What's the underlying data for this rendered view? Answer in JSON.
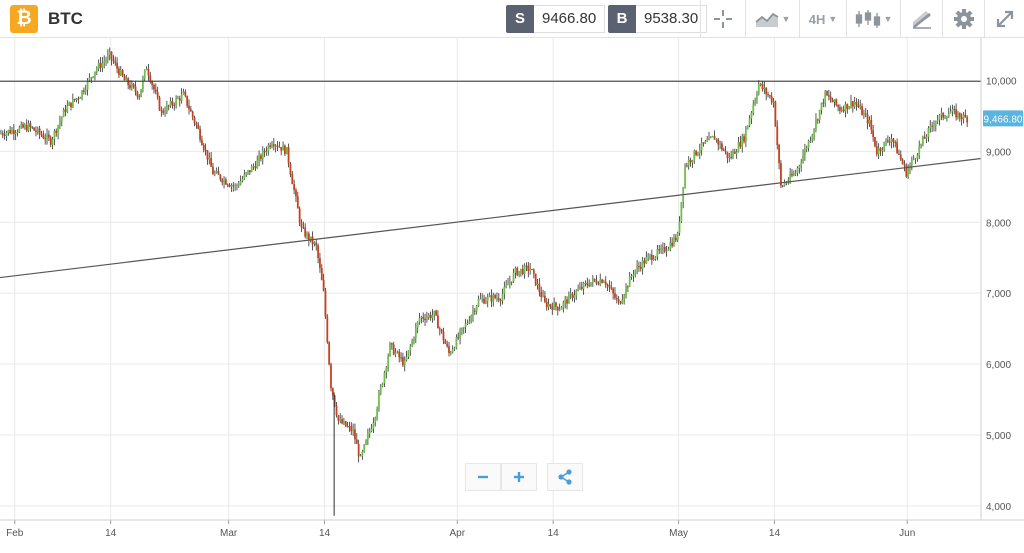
{
  "toolbar": {
    "symbol": "BTC",
    "logo_glyph": "₿",
    "sell": {
      "label": "S",
      "price": "9466.80"
    },
    "buy": {
      "label": "B",
      "price": "9538.30"
    },
    "timeframe": "4H",
    "icons": [
      "crosshair-icon",
      "chart-type-icon",
      "timeframe-dropdown",
      "candlestick-icon",
      "drawing-tools-icon",
      "settings-icon",
      "fullscreen-icon"
    ]
  },
  "zoom": {
    "icons": [
      "zoom-out-icon",
      "zoom-in-icon",
      "share-icon"
    ]
  },
  "colors": {
    "up": "#6fbf4a",
    "down": "#c9401c",
    "wick": "#2d2d2d",
    "grid": "#e9e9e9",
    "price_tag": "#5ab4e0",
    "logo": "#f7a823"
  },
  "chart_data": {
    "type": "candlestick",
    "symbol": "BTC",
    "timeframe": "4H",
    "y_ticks": [
      "10,000",
      "9,000",
      "8,000",
      "7,000",
      "6,000",
      "5,000",
      "4,000"
    ],
    "y_tick_values": [
      10000,
      9000,
      8000,
      7000,
      6000,
      5000,
      4000
    ],
    "ylim": [
      3800,
      10600
    ],
    "x_ticks": [
      "Feb",
      "14",
      "Mar",
      "14",
      "Apr",
      "14",
      "May",
      "14",
      "Jun"
    ],
    "x_tick_days": [
      0,
      13,
      29,
      42,
      60,
      73,
      90,
      103,
      121
    ],
    "xlim_days": [
      -2,
      131
    ],
    "last_price_label": "9,466.80",
    "last_price": 9466.8,
    "horizontal_line": {
      "price": 9990
    },
    "trend_line": {
      "from": {
        "day": -2,
        "price": 7220
      },
      "to": {
        "day": 131,
        "price": 8900
      }
    },
    "price_path": [
      [
        -2,
        9250
      ],
      [
        2,
        9350
      ],
      [
        5,
        9150
      ],
      [
        7,
        9600
      ],
      [
        9,
        9800
      ],
      [
        11,
        10150
      ],
      [
        13,
        10350
      ],
      [
        15,
        10000
      ],
      [
        17,
        9800
      ],
      [
        18,
        10200
      ],
      [
        20,
        9550
      ],
      [
        23,
        9800
      ],
      [
        25,
        9300
      ],
      [
        27,
        8700
      ],
      [
        30,
        8500
      ],
      [
        33,
        8850
      ],
      [
        35,
        9150
      ],
      [
        37,
        9000
      ],
      [
        39,
        7900
      ],
      [
        41,
        7650
      ],
      [
        42,
        7000
      ],
      [
        43,
        5700
      ],
      [
        44,
        5200
      ],
      [
        46,
        5050
      ],
      [
        47,
        4650
      ],
      [
        49,
        5300
      ],
      [
        51,
        6250
      ],
      [
        53,
        6000
      ],
      [
        55,
        6650
      ],
      [
        57,
        6700
      ],
      [
        59,
        6150
      ],
      [
        61,
        6500
      ],
      [
        63,
        6900
      ],
      [
        66,
        6950
      ],
      [
        68,
        7300
      ],
      [
        70,
        7350
      ],
      [
        72,
        6850
      ],
      [
        74,
        6800
      ],
      [
        76,
        7000
      ],
      [
        78,
        7150
      ],
      [
        80,
        7200
      ],
      [
        82,
        6850
      ],
      [
        84,
        7300
      ],
      [
        86,
        7500
      ],
      [
        88,
        7600
      ],
      [
        90,
        7800
      ],
      [
        91,
        8800
      ],
      [
        93,
        9050
      ],
      [
        95,
        9200
      ],
      [
        97,
        8900
      ],
      [
        99,
        9200
      ],
      [
        101,
        9950
      ],
      [
        103,
        9700
      ],
      [
        104,
        8500
      ],
      [
        106,
        8700
      ],
      [
        108,
        9200
      ],
      [
        110,
        9800
      ],
      [
        112,
        9600
      ],
      [
        114,
        9700
      ],
      [
        116,
        9400
      ],
      [
        117,
        9000
      ],
      [
        119,
        9200
      ],
      [
        121,
        8700
      ],
      [
        123,
        9100
      ],
      [
        125,
        9450
      ],
      [
        127,
        9560
      ],
      [
        129,
        9467
      ]
    ]
  }
}
